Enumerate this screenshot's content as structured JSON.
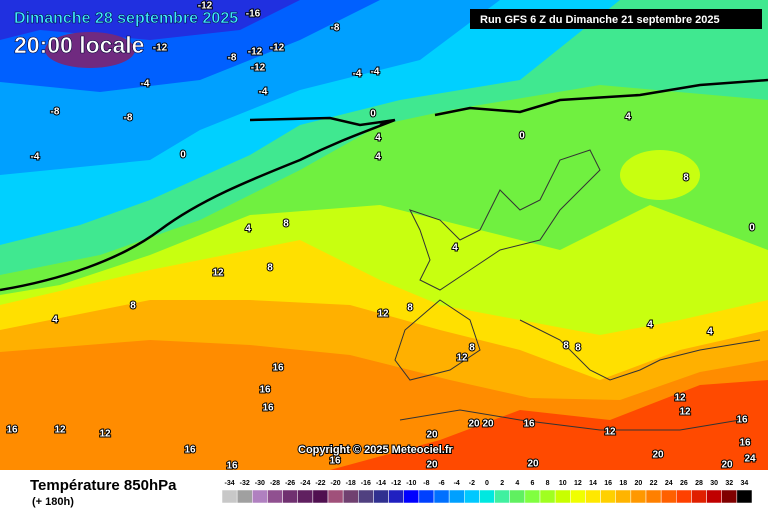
{
  "header": {
    "date": "Dimanche 28 septembre 2025",
    "time": "20:00 locale",
    "run": "Run GFS 6 Z du Dimanche 21 septembre 2025"
  },
  "copyright": "Copyright © 2025 Meteociel.fr",
  "footer": {
    "title": "Température 850hPa",
    "lead": "(+ 180h)"
  },
  "scale": {
    "labels": [
      -34,
      -32,
      -30,
      -28,
      -26,
      -24,
      -22,
      -20,
      -18,
      -16,
      -14,
      -12,
      -10,
      -8,
      -6,
      -4,
      -2,
      0,
      2,
      4,
      6,
      8,
      10,
      12,
      14,
      16,
      18,
      20,
      22,
      24,
      26,
      28,
      30,
      32,
      34
    ],
    "colors": [
      "#c8c8c8",
      "#a0a0a0",
      "#b080c0",
      "#905090",
      "#703070",
      "#602060",
      "#501050",
      "#a0507a",
      "#704070",
      "#504080",
      "#303090",
      "#2020c0",
      "#0000ff",
      "#0040ff",
      "#0070ff",
      "#00a0ff",
      "#00c8ff",
      "#00e8e0",
      "#40f0a0",
      "#60f060",
      "#80ff40",
      "#a0ff20",
      "#c8ff00",
      "#f0ff00",
      "#ffe800",
      "#ffd000",
      "#ffb400",
      "#ff9800",
      "#ff8000",
      "#ff6000",
      "#ff4000",
      "#e02000",
      "#c00000",
      "#800000",
      "#000000"
    ]
  },
  "contour_labels": [
    -12,
    -16,
    -8,
    -12,
    -12,
    -12,
    -8,
    -12,
    -4,
    -4,
    -4,
    -4,
    -8,
    -8,
    -4,
    0,
    0,
    4,
    4,
    0,
    4,
    8,
    0,
    4,
    8,
    12,
    8,
    8,
    4,
    12,
    8,
    4,
    8,
    12,
    16,
    16,
    16,
    16,
    12,
    12,
    16,
    16,
    16,
    20,
    20,
    20,
    16,
    12,
    12,
    12,
    16,
    16,
    20,
    24,
    20,
    20,
    20,
    8,
    8,
    4,
    4
  ]
}
